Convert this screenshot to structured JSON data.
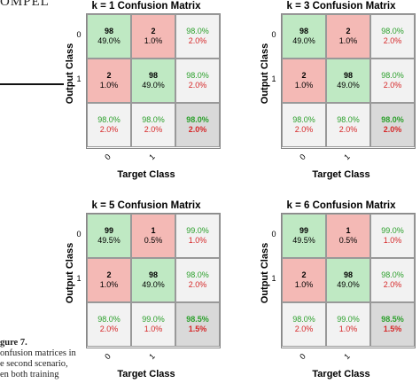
{
  "page": {
    "top_fragment": "OMPEL",
    "caption_lines": [
      {
        "text": "gure 7.",
        "bold": true
      },
      {
        "text": "onfusion matrices in",
        "bold": false
      },
      {
        "text": "e second scenario,",
        "bold": false
      },
      {
        "text": "en both training",
        "bold": false
      }
    ]
  },
  "chart_data": [
    {
      "type": "table",
      "title": "k = 1 Confusion Matrix",
      "xlabel": "Target Class",
      "ylabel": "Output Class",
      "x_ticks": [
        "0",
        "1"
      ],
      "y_ticks": [
        "0",
        "1"
      ],
      "cells": [
        [
          {
            "count": "98",
            "pct": "49.0%"
          },
          {
            "count": "2",
            "pct": "1.0%"
          },
          {
            "correct": "98.0%",
            "error": "2.0%"
          }
        ],
        [
          {
            "count": "2",
            "pct": "1.0%"
          },
          {
            "count": "98",
            "pct": "49.0%"
          },
          {
            "correct": "98.0%",
            "error": "2.0%"
          }
        ],
        [
          {
            "correct": "98.0%",
            "error": "2.0%"
          },
          {
            "correct": "98.0%",
            "error": "2.0%"
          },
          {
            "correct": "98.0%",
            "error": "2.0%"
          }
        ]
      ]
    },
    {
      "type": "table",
      "title": "k = 3 Confusion Matrix",
      "xlabel": "Target Class",
      "ylabel": "Output Class",
      "x_ticks": [
        "0",
        "1"
      ],
      "y_ticks": [
        "0",
        "1"
      ],
      "cells": [
        [
          {
            "count": "98",
            "pct": "49.0%"
          },
          {
            "count": "2",
            "pct": "1.0%"
          },
          {
            "correct": "98.0%",
            "error": "2.0%"
          }
        ],
        [
          {
            "count": "2",
            "pct": "1.0%"
          },
          {
            "count": "98",
            "pct": "49.0%"
          },
          {
            "correct": "98.0%",
            "error": "2.0%"
          }
        ],
        [
          {
            "correct": "98.0%",
            "error": "2.0%"
          },
          {
            "correct": "98.0%",
            "error": "2.0%"
          },
          {
            "correct": "98.0%",
            "error": "2.0%"
          }
        ]
      ]
    },
    {
      "type": "table",
      "title": "k = 5 Confusion Matrix",
      "xlabel": "Target Class",
      "ylabel": "Output Class",
      "x_ticks": [
        "0",
        "1"
      ],
      "y_ticks": [
        "0",
        "1"
      ],
      "cells": [
        [
          {
            "count": "99",
            "pct": "49.5%"
          },
          {
            "count": "1",
            "pct": "0.5%"
          },
          {
            "correct": "99.0%",
            "error": "1.0%"
          }
        ],
        [
          {
            "count": "2",
            "pct": "1.0%"
          },
          {
            "count": "98",
            "pct": "49.0%"
          },
          {
            "correct": "98.0%",
            "error": "2.0%"
          }
        ],
        [
          {
            "correct": "98.0%",
            "error": "2.0%"
          },
          {
            "correct": "99.0%",
            "error": "1.0%"
          },
          {
            "correct": "98.5%",
            "error": "1.5%"
          }
        ]
      ]
    },
    {
      "type": "table",
      "title": "k = 6 Confusion Matrix",
      "xlabel": "Target Class",
      "ylabel": "Output Class",
      "x_ticks": [
        "0",
        "1"
      ],
      "y_ticks": [
        "0",
        "1"
      ],
      "cells": [
        [
          {
            "count": "99",
            "pct": "49.5%"
          },
          {
            "count": "1",
            "pct": "0.5%"
          },
          {
            "correct": "99.0%",
            "error": "1.0%"
          }
        ],
        [
          {
            "count": "2",
            "pct": "1.0%"
          },
          {
            "count": "98",
            "pct": "49.0%"
          },
          {
            "correct": "98.0%",
            "error": "2.0%"
          }
        ],
        [
          {
            "correct": "98.0%",
            "error": "2.0%"
          },
          {
            "correct": "99.0%",
            "error": "1.0%"
          },
          {
            "correct": "98.5%",
            "error": "1.5%"
          }
        ]
      ]
    }
  ]
}
